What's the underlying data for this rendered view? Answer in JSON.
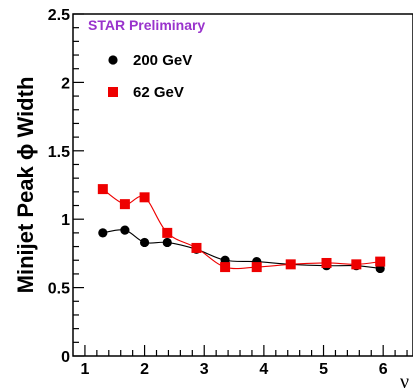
{
  "chart_data": {
    "type": "line",
    "ylabel": "Minijet Peak ϕ Width",
    "xlabel": "ν",
    "annotation": "STAR Preliminary",
    "xlim": [
      0.8,
      6.5
    ],
    "ylim": [
      0,
      2.5
    ],
    "xticks": [
      1,
      2,
      3,
      4,
      5,
      6
    ],
    "yticks": [
      0,
      0.5,
      1,
      1.5,
      2,
      2.5
    ],
    "ytick_labels": [
      "0",
      "0.5",
      "1",
      "1.5",
      "2",
      "2.5"
    ],
    "legend_position": "top-left",
    "series": [
      {
        "name": "200 GeV",
        "color": "#000000",
        "marker": "circle",
        "x": [
          1.3,
          1.67,
          2.0,
          2.38,
          2.87,
          3.35,
          3.88,
          4.45,
          5.05,
          5.55,
          5.95
        ],
        "y": [
          0.9,
          0.92,
          0.83,
          0.83,
          0.78,
          0.7,
          0.69,
          0.67,
          0.66,
          0.66,
          0.64
        ]
      },
      {
        "name": "62 GeV",
        "color": "#ee0000",
        "marker": "square",
        "x": [
          1.3,
          1.67,
          2.0,
          2.38,
          2.87,
          3.35,
          3.88,
          4.45,
          5.05,
          5.55,
          5.95
        ],
        "y": [
          1.22,
          1.11,
          1.16,
          0.9,
          0.79,
          0.65,
          0.65,
          0.67,
          0.68,
          0.67,
          0.69
        ]
      }
    ]
  }
}
